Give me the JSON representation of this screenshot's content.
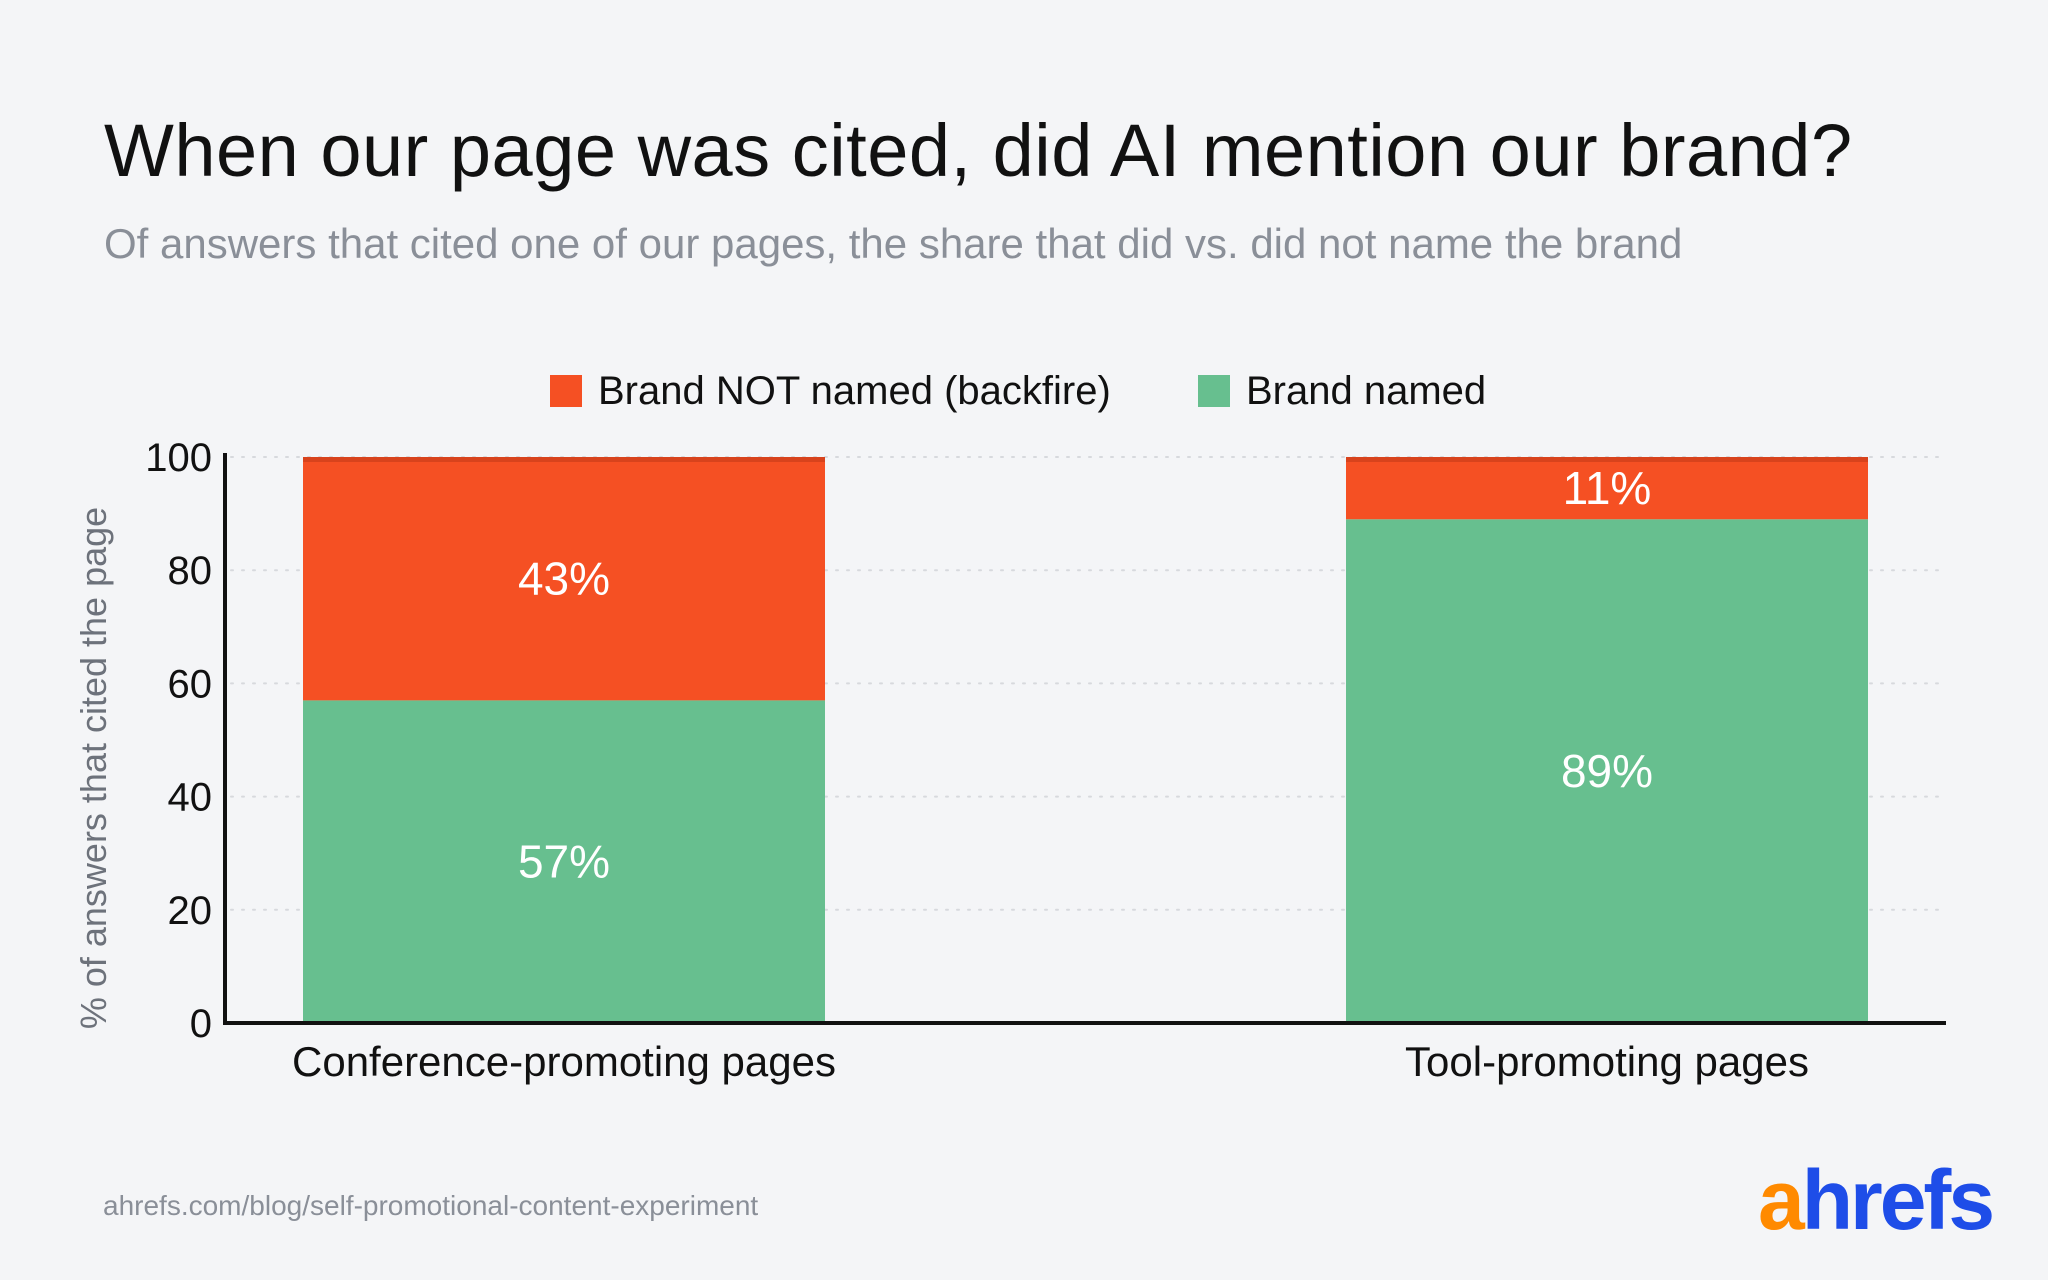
{
  "header": {
    "title": "When our page was cited, did AI mention our brand?",
    "subtitle": "Of answers that cited one of our pages, the share that did vs. did not name the brand"
  },
  "footer": {
    "source": "ahrefs.com/blog/self-promotional-content-experiment",
    "logo_first": "a",
    "logo_rest": "hrefs"
  },
  "chart_data": {
    "type": "bar",
    "stacked": true,
    "categories": [
      "Conference-promoting pages",
      "Tool-promoting pages"
    ],
    "series": [
      {
        "name": "Brand named",
        "values": [
          57,
          89
        ],
        "labels": [
          "57%",
          "89%"
        ],
        "color": "#67bf8f"
      },
      {
        "name": "Brand NOT named (backfire)",
        "values": [
          43,
          11
        ],
        "labels": [
          "43%",
          "11%"
        ],
        "color": "#f55023"
      }
    ],
    "legend_order": [
      "Brand NOT named (backfire)",
      "Brand named"
    ],
    "legend_placement": "top-center",
    "ylabel": "% of answers that cited the page",
    "xlabel": "",
    "ylim": [
      0,
      100
    ],
    "yticks": [
      0,
      20,
      40,
      60,
      80,
      100
    ],
    "grid": "horizontal-dotted",
    "colors": {
      "axis": "#111111",
      "grid": "#d7d9dd",
      "bar_cap": "#d8431c",
      "bar_label": "#ffffff"
    }
  }
}
